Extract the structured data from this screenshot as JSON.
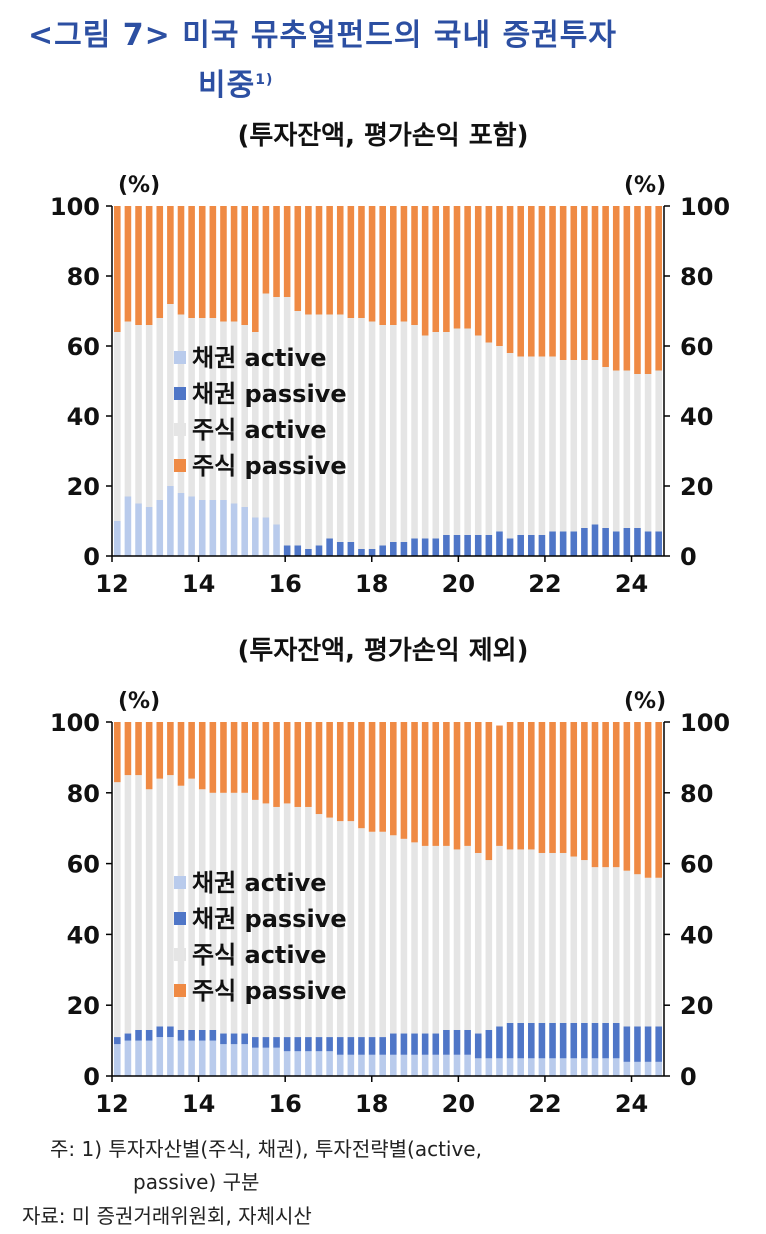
{
  "figure": {
    "title_line1": "<그림 7> 미국 뮤추얼펀드의 국내 증권투자",
    "title_line2": "비중",
    "footnote_mark": "1)"
  },
  "colors": {
    "bond_active": "#b9cbec",
    "bond_passive": "#4f76c7",
    "equity_active": "#e5e5e5",
    "equity_passive": "#ef8a44"
  },
  "chart_data": [
    {
      "type": "bar",
      "stacked": true,
      "title": "(투자잔액, 평가손익 포함)",
      "ylabel_left": "(%)",
      "ylabel_right": "(%)",
      "ylim": [
        0,
        100
      ],
      "yticks": [
        "0",
        "20",
        "40",
        "60",
        "80",
        "100"
      ],
      "x_range": [
        12,
        24.75
      ],
      "xticks": [
        "12",
        "14",
        "16",
        "18",
        "20",
        "22",
        "24"
      ],
      "legend": [
        "채권 active",
        "채권 passive",
        "주식 active",
        "주식 passive"
      ],
      "x_start": 12.0,
      "x_step": 0.25,
      "series": [
        {
          "name": "채권 active",
          "values": [
            10,
            17,
            15,
            14,
            16,
            20,
            18,
            17,
            16,
            16,
            16,
            15,
            14,
            11,
            11,
            9,
            0,
            0,
            0,
            0,
            0,
            0,
            0,
            0,
            0,
            0,
            0,
            0,
            0,
            0,
            0,
            0,
            0,
            0,
            0,
            0,
            0,
            0,
            0,
            0,
            0,
            0,
            0,
            0,
            0,
            0,
            0,
            0,
            0,
            0,
            0,
            0
          ]
        },
        {
          "name": "채권 passive",
          "values": [
            0,
            0,
            0,
            0,
            0,
            0,
            0,
            0,
            0,
            0,
            0,
            0,
            0,
            0,
            0,
            0,
            3,
            3,
            2,
            3,
            5,
            4,
            4,
            2,
            2,
            3,
            4,
            4,
            5,
            5,
            5,
            6,
            6,
            6,
            6,
            6,
            7,
            5,
            6,
            6,
            6,
            7,
            7,
            7,
            8,
            9,
            8,
            7,
            8,
            8,
            7,
            7
          ]
        },
        {
          "name": "주식 active",
          "values": [
            54,
            50,
            51,
            52,
            52,
            52,
            51,
            51,
            52,
            52,
            51,
            52,
            52,
            53,
            64,
            65,
            71,
            67,
            67,
            66,
            64,
            65,
            64,
            66,
            65,
            63,
            62,
            63,
            61,
            58,
            59,
            58,
            59,
            59,
            57,
            55,
            53,
            53,
            51,
            51,
            51,
            50,
            49,
            49,
            48,
            47,
            46,
            46,
            45,
            44,
            45,
            46
          ]
        },
        {
          "name": "주식 passive",
          "values": [
            36,
            33,
            34,
            34,
            32,
            28,
            31,
            32,
            32,
            32,
            33,
            33,
            34,
            36,
            25,
            26,
            26,
            30,
            31,
            31,
            31,
            31,
            32,
            32,
            33,
            34,
            34,
            33,
            34,
            37,
            36,
            36,
            35,
            35,
            37,
            39,
            40,
            42,
            43,
            43,
            43,
            43,
            44,
            44,
            44,
            44,
            46,
            47,
            47,
            48,
            48,
            47
          ]
        }
      ]
    },
    {
      "type": "bar",
      "stacked": true,
      "title": "(투자잔액, 평가손익 제외)",
      "ylabel_left": "(%)",
      "ylabel_right": "(%)",
      "ylim": [
        0,
        100
      ],
      "yticks": [
        "0",
        "20",
        "40",
        "60",
        "80",
        "100"
      ],
      "x_range": [
        12,
        24.75
      ],
      "xticks": [
        "12",
        "14",
        "16",
        "18",
        "20",
        "22",
        "24"
      ],
      "legend": [
        "채권 active",
        "채권 passive",
        "주식 active",
        "주식 passive"
      ],
      "x_start": 12.0,
      "x_step": 0.25,
      "series": [
        {
          "name": "채권 active",
          "values": [
            9,
            10,
            10,
            10,
            11,
            11,
            10,
            10,
            10,
            10,
            9,
            9,
            9,
            8,
            8,
            8,
            7,
            7,
            7,
            7,
            7,
            6,
            6,
            6,
            6,
            6,
            6,
            6,
            6,
            6,
            6,
            6,
            6,
            6,
            5,
            5,
            5,
            5,
            5,
            5,
            5,
            5,
            5,
            5,
            5,
            5,
            5,
            5,
            4,
            4,
            4,
            4
          ]
        },
        {
          "name": "채권 passive",
          "values": [
            2,
            2,
            3,
            3,
            3,
            3,
            3,
            3,
            3,
            3,
            3,
            3,
            3,
            3,
            3,
            3,
            4,
            4,
            4,
            4,
            4,
            5,
            5,
            5,
            5,
            5,
            6,
            6,
            6,
            6,
            6,
            7,
            7,
            7,
            7,
            8,
            9,
            10,
            10,
            10,
            10,
            10,
            10,
            10,
            10,
            10,
            10,
            10,
            10,
            10,
            10,
            10
          ]
        },
        {
          "name": "주식 active",
          "values": [
            72,
            73,
            72,
            68,
            70,
            71,
            69,
            71,
            68,
            67,
            68,
            68,
            68,
            67,
            66,
            65,
            66,
            65,
            65,
            63,
            62,
            61,
            61,
            59,
            58,
            58,
            56,
            55,
            54,
            53,
            53,
            52,
            51,
            52,
            51,
            48,
            51,
            49,
            49,
            49,
            48,
            48,
            48,
            47,
            46,
            44,
            44,
            44,
            44,
            43,
            42,
            42
          ]
        },
        {
          "name": "주식 passive",
          "values": [
            17,
            15,
            15,
            19,
            16,
            15,
            18,
            16,
            19,
            20,
            20,
            20,
            20,
            22,
            23,
            24,
            23,
            24,
            24,
            26,
            27,
            28,
            28,
            30,
            31,
            31,
            32,
            33,
            34,
            35,
            35,
            35,
            36,
            35,
            37,
            39,
            34,
            36,
            36,
            36,
            37,
            37,
            37,
            38,
            39,
            41,
            41,
            41,
            42,
            43,
            44,
            44
          ]
        }
      ]
    }
  ],
  "notes": {
    "note1_line1": "주:  1)  투자자산별(주식,  채권),  투자전략별(active,",
    "note1_line2": "passive)  구분",
    "source": "자료:  미  증권거래위원회,  자체시산"
  }
}
